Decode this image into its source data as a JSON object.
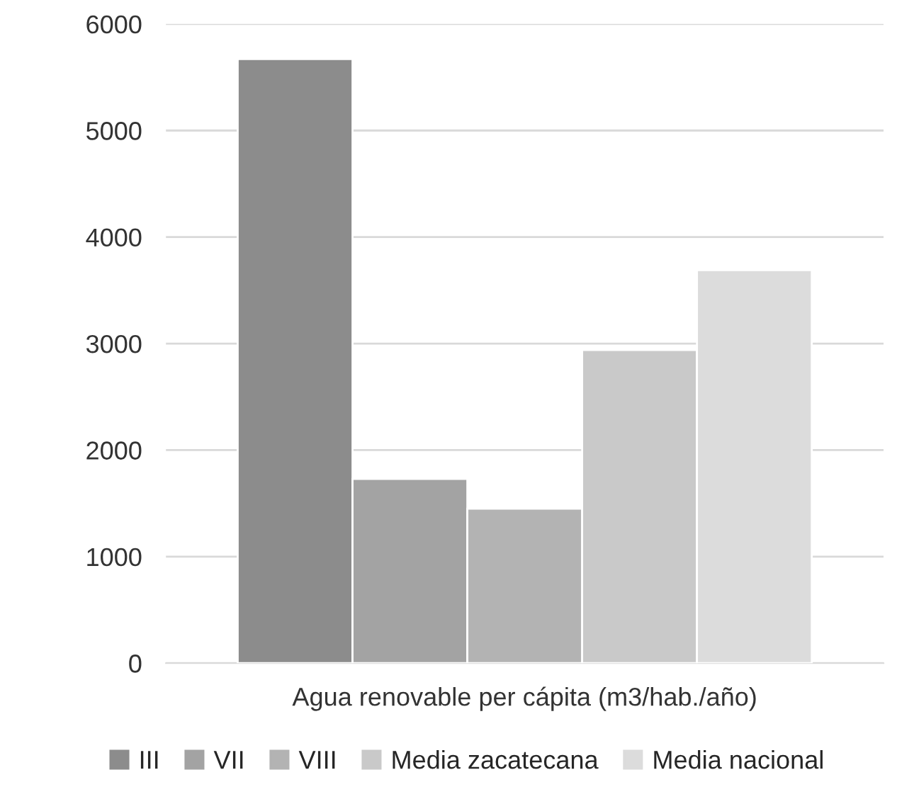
{
  "chart_data": {
    "type": "bar",
    "categories": [
      "Agua renovable per cápita (m3/hab./año)"
    ],
    "series": [
      {
        "name": "III",
        "color": "#8c8c8c",
        "values": [
          5670
        ]
      },
      {
        "name": "VII",
        "color": "#a3a3a3",
        "values": [
          1730
        ]
      },
      {
        "name": "VIII",
        "color": "#b3b3b3",
        "values": [
          1450
        ]
      },
      {
        "name": "Media zacatecana",
        "color": "#c9c9c9",
        "values": [
          2940
        ]
      },
      {
        "name": "Media nacional",
        "color": "#dcdcdc",
        "values": [
          3690
        ]
      }
    ],
    "ylim": [
      0,
      6000
    ],
    "yticks": [
      0,
      1000,
      2000,
      3000,
      4000,
      5000,
      6000
    ],
    "grid": "y",
    "legend": "bottom"
  }
}
